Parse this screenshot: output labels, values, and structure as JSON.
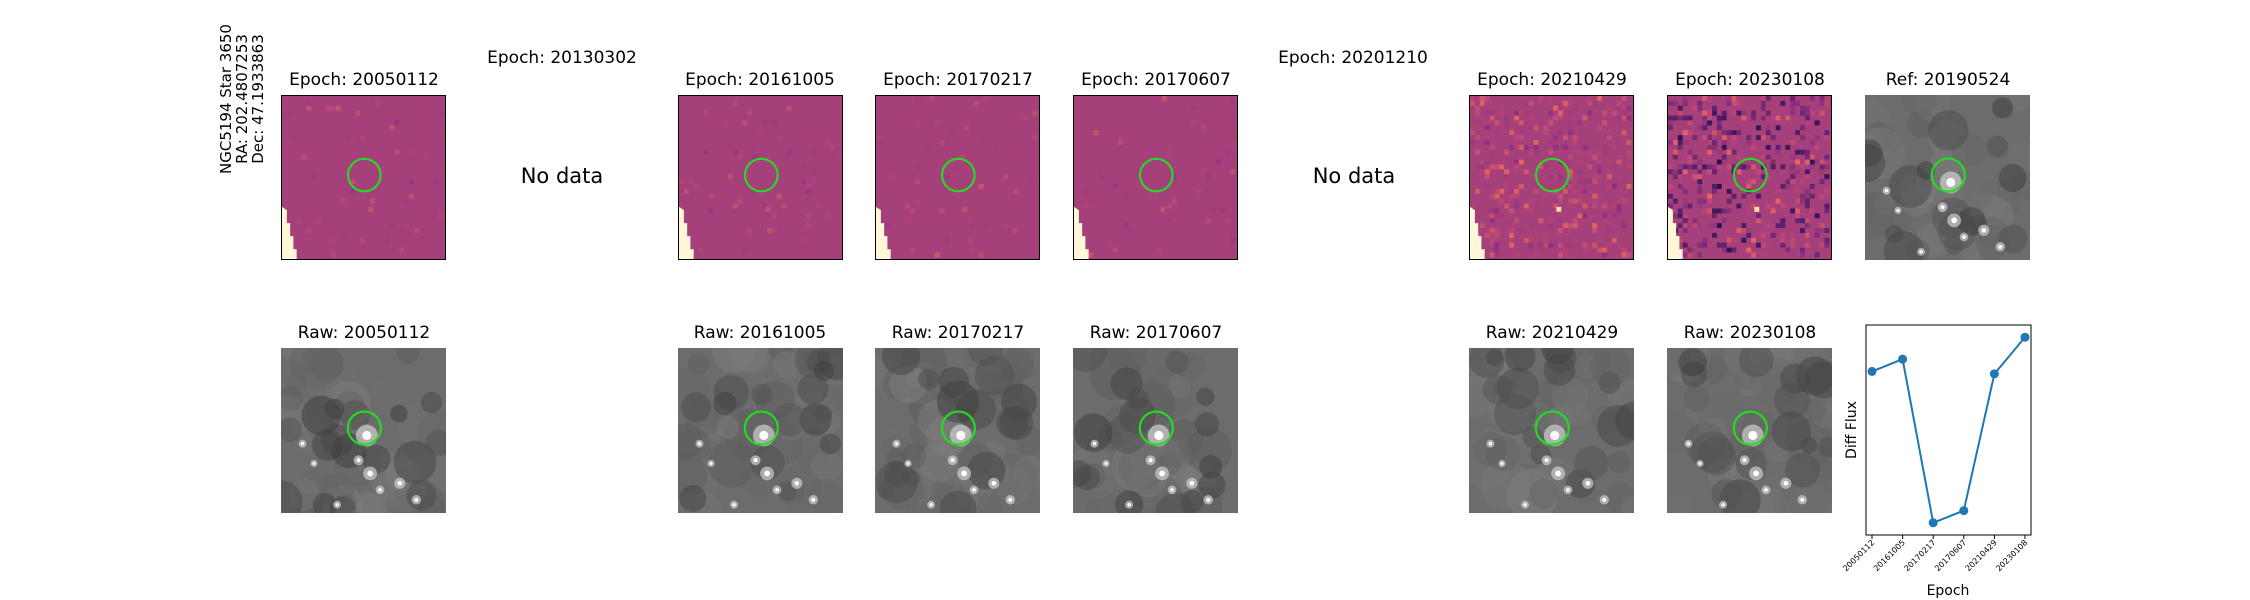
{
  "star_info": {
    "name": "NGC5194 Star 3650",
    "ra": "RA: 202.4807253",
    "dec": "Dec: 47.1933863"
  },
  "diff_panels": [
    {
      "title": "Epoch: 20050112",
      "style": "diff",
      "has_data": true
    },
    {
      "title": "Epoch: 20130302",
      "has_data": false,
      "nodata": "No data"
    },
    {
      "title": "Epoch: 20161005",
      "style": "diff",
      "has_data": true
    },
    {
      "title": "Epoch: 20170217",
      "style": "diff",
      "has_data": true
    },
    {
      "title": "Epoch: 20170607",
      "style": "diff",
      "has_data": true
    },
    {
      "title": "Epoch: 20201210",
      "has_data": false,
      "nodata": "No data"
    },
    {
      "title": "Epoch: 20210429",
      "style": "diff-noisy",
      "has_data": true
    },
    {
      "title": "Epoch: 20230108",
      "style": "diff-very-noisy",
      "has_data": true
    },
    {
      "title": "Ref: 20190524",
      "style": "raw",
      "has_data": true
    }
  ],
  "raw_panels": [
    {
      "title": "Raw: 20050112"
    },
    {
      "title": "Raw: 20161005"
    },
    {
      "title": "Raw: 20170217"
    },
    {
      "title": "Raw: 20170607"
    },
    {
      "title": "Raw: 20210429"
    },
    {
      "title": "Raw: 20230108"
    }
  ],
  "colors": {
    "diff_bg": "#a6407a",
    "circle": "#22dd22",
    "raw_bg": "#6a6a6a",
    "line": "#1f77b4"
  },
  "chart_data": {
    "type": "line",
    "x": [
      "20050112",
      "20161005",
      "20170217",
      "20170607",
      "20210429",
      "20230108"
    ],
    "values": [
      0.72,
      0.77,
      0.1,
      0.15,
      0.71,
      0.86
    ],
    "xlabel": "Epoch",
    "ylabel": "Diff Flux",
    "ylim": [
      0.05,
      0.91
    ]
  }
}
